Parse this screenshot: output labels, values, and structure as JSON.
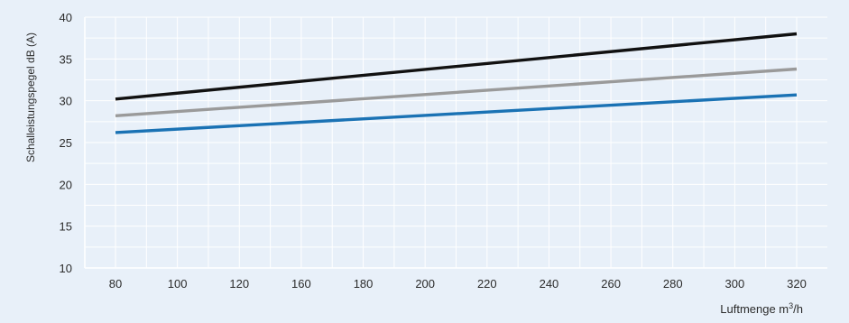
{
  "chart_data": {
    "type": "line",
    "xlabel": "Luftmenge m",
    "xlabel_sup": "3",
    "xlabel_suffix": "/h",
    "ylabel": "Schalleistungspegel  dB (A)",
    "x_ticks": [
      80,
      100,
      120,
      160,
      180,
      200,
      220,
      240,
      260,
      280,
      300,
      320
    ],
    "y_ticks": [
      10,
      15,
      20,
      25,
      30,
      35,
      40
    ],
    "ylim": [
      10,
      40
    ],
    "grid": true,
    "background_color": "#e8f0f9",
    "grid_color": "#ffffff",
    "series": [
      {
        "color": "#111111",
        "x": [
          80,
          320
        ],
        "y": [
          30.2,
          38.0
        ]
      },
      {
        "color": "#9a9a9a",
        "x": [
          80,
          320
        ],
        "y": [
          28.2,
          33.8
        ]
      },
      {
        "color": "#1a72b4",
        "x": [
          80,
          320
        ],
        "y": [
          26.2,
          30.7
        ]
      }
    ]
  }
}
